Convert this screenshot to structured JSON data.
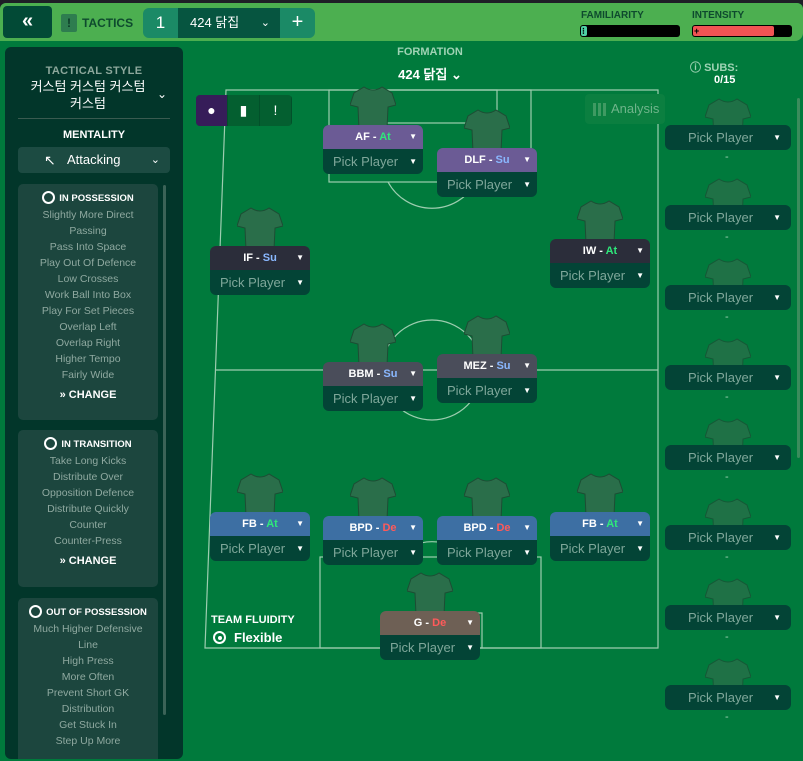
{
  "topbar": {
    "back_icon": "double-chevron-left",
    "tactics_label": "TACTICS",
    "tactic_number": "1",
    "tactic_name": "424 닭집",
    "add_label": "+",
    "familiarity_label": "FAMILIARITY",
    "familiarity_level": 0.06,
    "intensity_label": "INTENSITY",
    "intensity_level": 0.83,
    "colors": {
      "familiarity": "#4fd1a5",
      "intensity": "#f05454"
    }
  },
  "sidebar": {
    "tactical_style_label": "TACTICAL STYLE",
    "tactical_style_value": "커스텀 커스텀 커스텀 커스텀",
    "mentality_label": "MENTALITY",
    "mentality_value": "Attacking",
    "panels": [
      {
        "title": "IN POSSESSION",
        "items": [
          "Slightly More Direct",
          "Passing",
          "Pass Into Space",
          "Play Out Of Defence",
          "Low Crosses",
          "Work Ball Into Box",
          "Play For Set Pieces",
          "Overlap Left",
          "Overlap Right",
          "Higher Tempo",
          "Fairly Wide"
        ],
        "change": "CHANGE"
      },
      {
        "title": "IN TRANSITION",
        "items": [
          "Take Long Kicks",
          "Distribute Over",
          "Opposition Defence",
          "Distribute Quickly",
          "Counter",
          "Counter-Press"
        ],
        "change": "CHANGE"
      },
      {
        "title": "OUT OF POSSESSION",
        "items": [
          "Much Higher Defensive",
          "Line",
          "High Press",
          "More Often",
          "Prevent Short GK",
          "Distribution",
          "Get Stuck In",
          "Step Up More"
        ]
      }
    ]
  },
  "formation": {
    "label": "FORMATION",
    "value": "424 닭집",
    "analysis_label": "Analysis",
    "fluidity_label": "TEAM FLUIDITY",
    "fluidity_value": "Flexible",
    "duty_colors": {
      "At": "#2ee87a",
      "Su": "#8ab8ff",
      "De": "#ff5a5a"
    },
    "positions": [
      {
        "role": "AF",
        "duty": "At",
        "pick": "Pick Player"
      },
      {
        "role": "DLF",
        "duty": "Su",
        "pick": "Pick Player"
      },
      {
        "role": "IF",
        "duty": "Su",
        "pick": "Pick Player"
      },
      {
        "role": "IW",
        "duty": "At",
        "pick": "Pick Player"
      },
      {
        "role": "BBM",
        "duty": "Su",
        "pick": "Pick Player"
      },
      {
        "role": "MEZ",
        "duty": "Su",
        "pick": "Pick Player"
      },
      {
        "role": "FB",
        "duty": "At",
        "pick": "Pick Player"
      },
      {
        "role": "BPD",
        "duty": "De",
        "pick": "Pick Player"
      },
      {
        "role": "BPD",
        "duty": "De",
        "pick": "Pick Player"
      },
      {
        "role": "FB",
        "duty": "At",
        "pick": "Pick Player"
      },
      {
        "role": "G",
        "duty": "De",
        "pick": "Pick Player"
      }
    ]
  },
  "subs": {
    "label": "SUBS:",
    "count": "0/15",
    "slots": [
      {
        "pick": "Pick Player",
        "dash": "-"
      },
      {
        "pick": "Pick Player",
        "dash": "-"
      },
      {
        "pick": "Pick Player",
        "dash": "-"
      },
      {
        "pick": "Pick Player",
        "dash": "-"
      },
      {
        "pick": "Pick Player",
        "dash": "-"
      },
      {
        "pick": "Pick Player",
        "dash": "-"
      },
      {
        "pick": "Pick Player",
        "dash": "-"
      },
      {
        "pick": "Pick Player",
        "dash": "-"
      }
    ]
  }
}
